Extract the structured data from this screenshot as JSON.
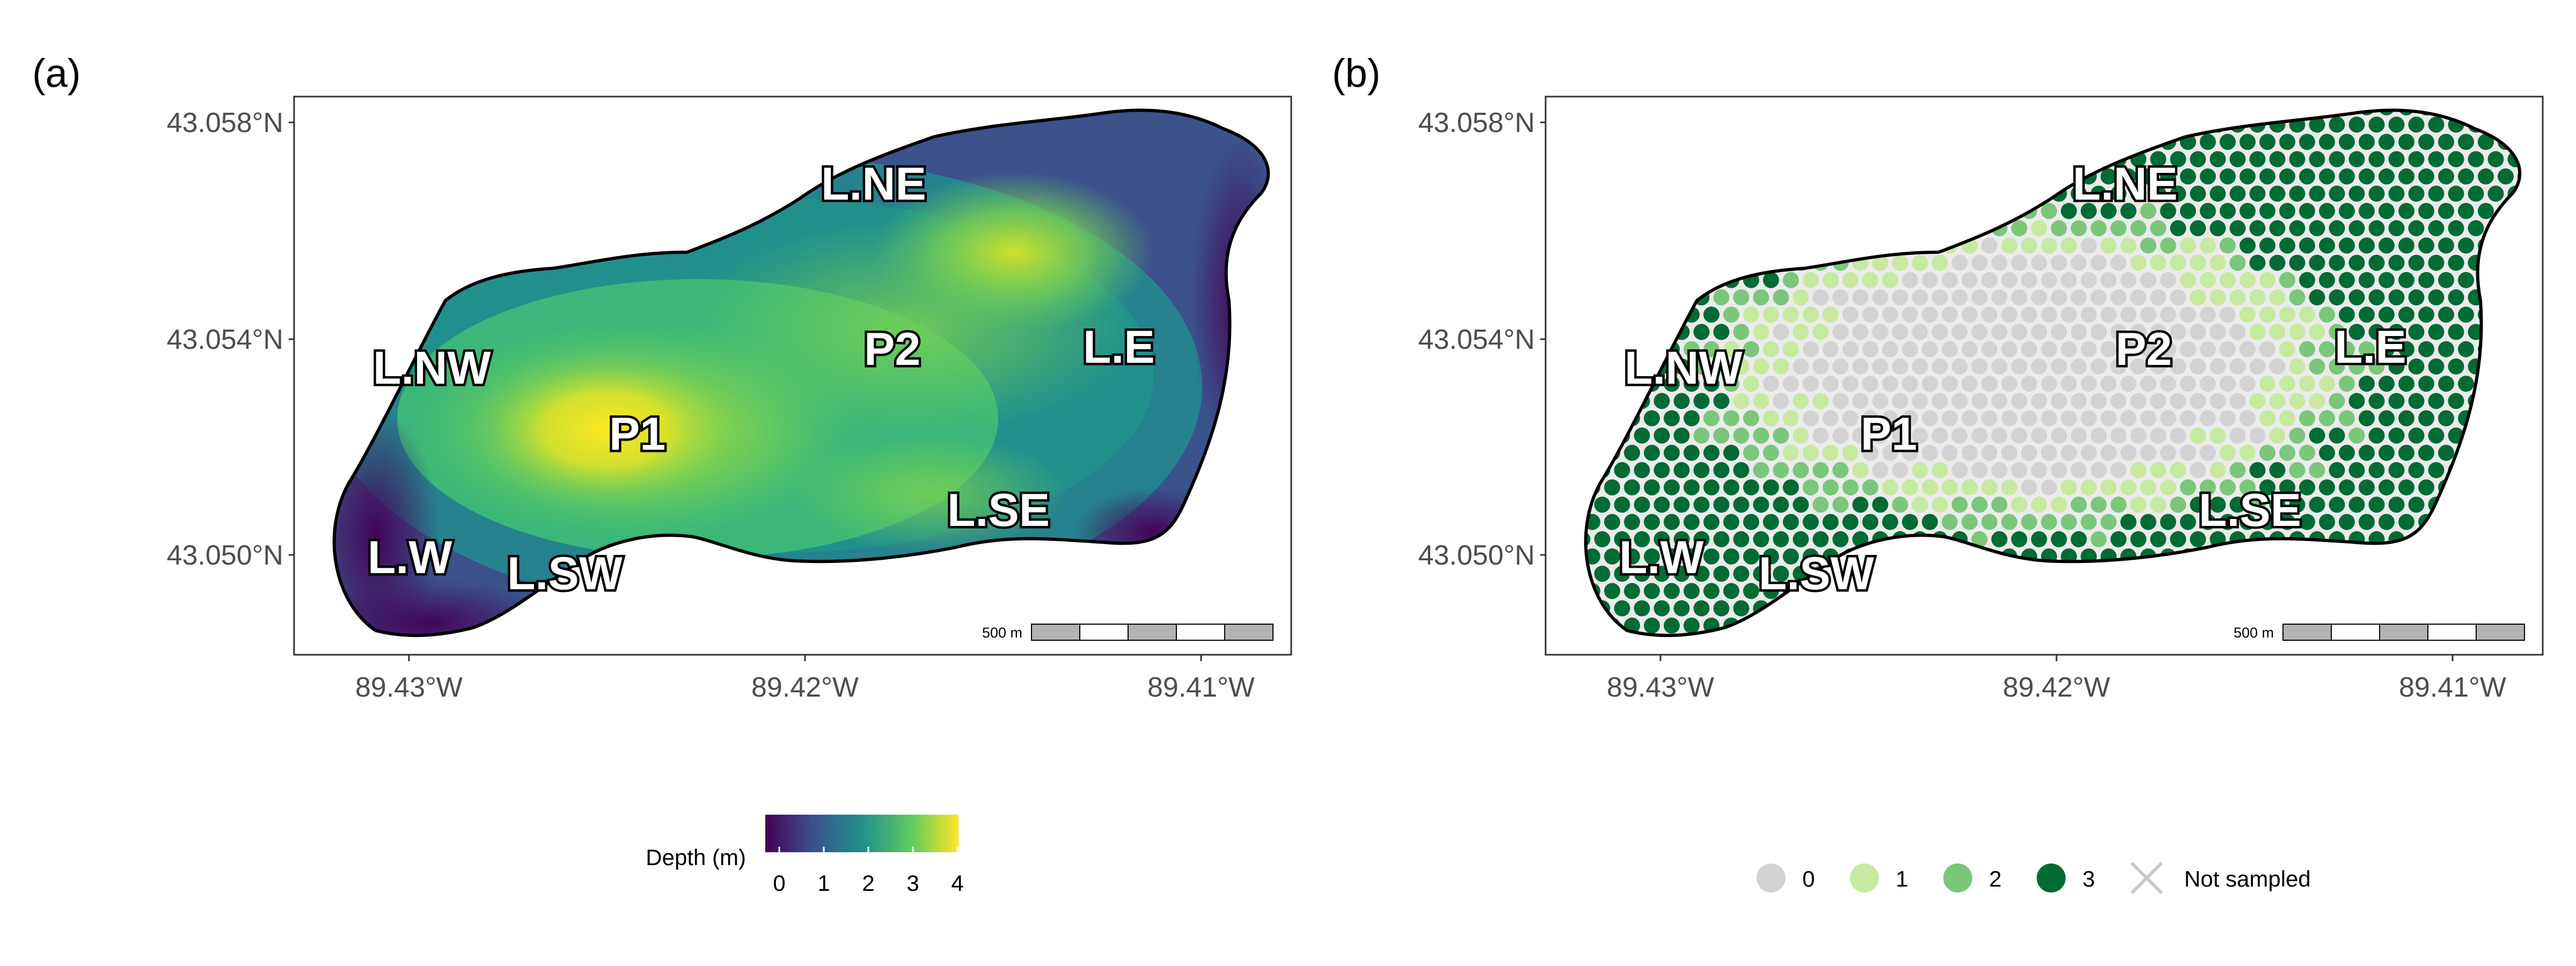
{
  "panels": [
    {
      "tag": "(a)",
      "lat_ticks": [
        "43.058°N",
        "43.054°N",
        "43.050°N"
      ],
      "lon_ticks": [
        "89.43°W",
        "89.42°W",
        "89.41°W"
      ],
      "sites": [
        "L.NE",
        "L.NW",
        "P2",
        "L.E",
        "P1",
        "L.SE",
        "L.W",
        "L.SW"
      ],
      "scale_label": "500 m"
    },
    {
      "tag": "(b)",
      "lat_ticks": [
        "43.058°N",
        "43.054°N",
        "43.050°N"
      ],
      "lon_ticks": [
        "89.43°W",
        "89.42°W",
        "89.41°W"
      ],
      "sites": [
        "L.NE",
        "L.NW",
        "P2",
        "L.E",
        "P1",
        "L.SE",
        "L.W",
        "L.SW"
      ],
      "scale_label": "500 m"
    }
  ],
  "depth_legend": {
    "title": "Depth (m)",
    "ticks": [
      "0",
      "1",
      "2",
      "3",
      "4"
    ],
    "colors": [
      "#440154",
      "#3b528b",
      "#21908c",
      "#5ec962",
      "#fde725"
    ]
  },
  "category_legend": {
    "items": [
      {
        "label": "0",
        "color": "#d3d3d3"
      },
      {
        "label": "1",
        "color": "#c7e9a0"
      },
      {
        "label": "2",
        "color": "#7bc77a"
      },
      {
        "label": "3",
        "color": "#006b35"
      },
      {
        "label": "Not sampled",
        "color": "#c8c8c8"
      }
    ]
  }
}
